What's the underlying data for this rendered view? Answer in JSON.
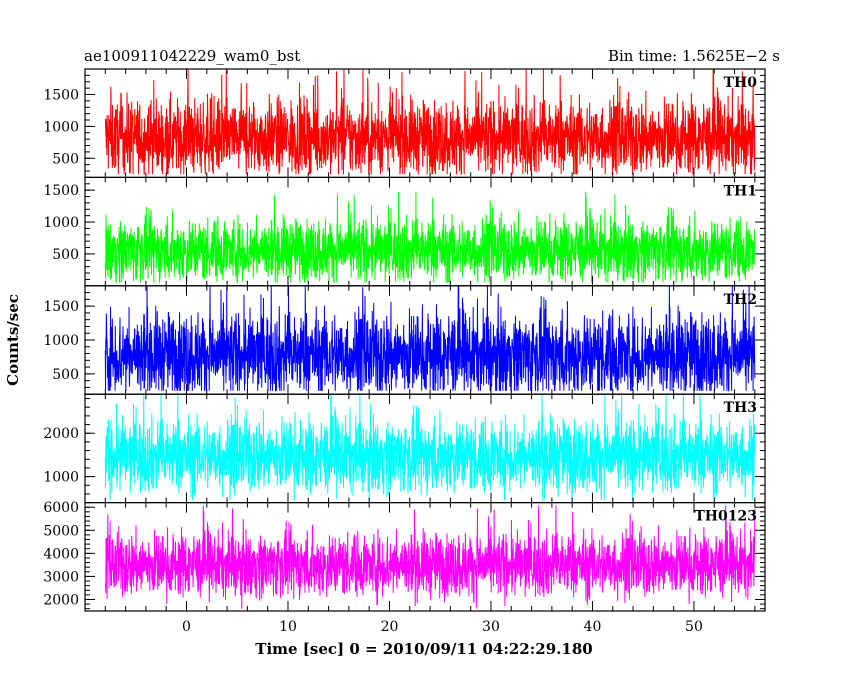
{
  "header": {
    "left_title": "ae100911042229_wam0_bst",
    "right_title": "Bin time: 1.5625E−2 s"
  },
  "axes": {
    "ylabel": "Counts/sec",
    "xlabel": "Time [sec] 0 = 2010/09/11 04:22:29.180"
  },
  "chart_data": {
    "type": "line",
    "x_range": [
      -8,
      56
    ],
    "xlim": [
      -10,
      57
    ],
    "x_ticks": [
      0,
      10,
      20,
      30,
      40,
      50
    ],
    "x_tick_labels": [
      "0",
      "10",
      "20",
      "30",
      "40",
      "50"
    ],
    "grid": false,
    "panels": [
      {
        "name": "TH0",
        "color": "#ff0000",
        "ylim": [
          200,
          1900
        ],
        "y_ticks": [
          500,
          1000,
          1500
        ],
        "y_tick_labels": [
          "500",
          "1000",
          "1500"
        ],
        "mean": 820,
        "spread": 300,
        "min": 250,
        "max": 1900
      },
      {
        "name": "TH1",
        "color": "#00ff00",
        "ylim": [
          0,
          1700
        ],
        "y_ticks": [
          500,
          1000,
          1500
        ],
        "y_tick_labels": [
          "500",
          "1000",
          "1500"
        ],
        "mean": 560,
        "spread": 250,
        "min": 50,
        "max": 1700
      },
      {
        "name": "TH2",
        "color": "#0000ff",
        "ylim": [
          200,
          1800
        ],
        "y_ticks": [
          500,
          1000,
          1500
        ],
        "y_tick_labels": [
          "500",
          "1000",
          "1500"
        ],
        "mean": 780,
        "spread": 320,
        "min": 250,
        "max": 1800
      },
      {
        "name": "TH3",
        "color": "#00ffff",
        "ylim": [
          400,
          2900
        ],
        "y_ticks": [
          1000,
          2000
        ],
        "y_tick_labels": [
          "1000",
          "2000"
        ],
        "mean": 1480,
        "spread": 430,
        "min": 450,
        "max": 2900
      },
      {
        "name": "TH0123",
        "color": "#ff00ff",
        "ylim": [
          1500,
          6200
        ],
        "y_ticks": [
          2000,
          3000,
          4000,
          5000,
          6000
        ],
        "y_tick_labels": [
          "2000",
          "3000",
          "4000",
          "5000",
          "6000"
        ],
        "mean": 3500,
        "spread": 700,
        "min": 1600,
        "max": 6200
      }
    ]
  }
}
